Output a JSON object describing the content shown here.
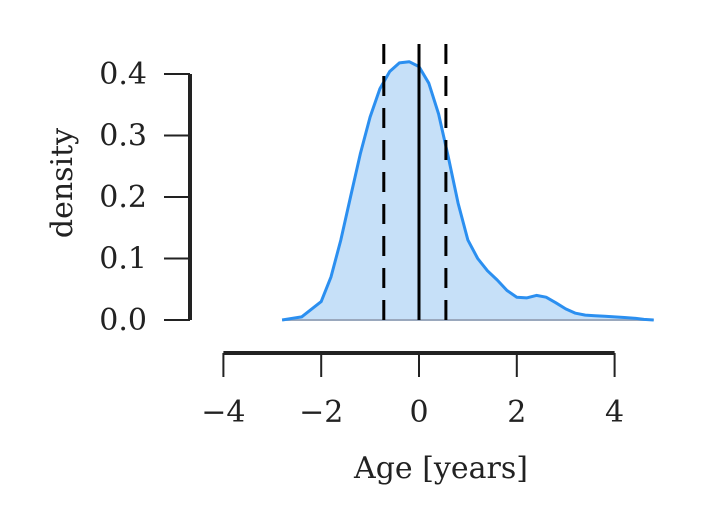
{
  "chart_data": {
    "type": "area",
    "title": "",
    "xlabel": "Age [years]",
    "ylabel": "density",
    "xlim": [
      -4,
      4.8
    ],
    "ylim": [
      0,
      0.4
    ],
    "x_ticks": [
      -4,
      -2,
      0,
      2,
      4
    ],
    "x_tick_labels": [
      "−4",
      "−2",
      "0",
      "2",
      "4"
    ],
    "y_ticks": [
      0.0,
      0.1,
      0.2,
      0.3,
      0.4
    ],
    "y_tick_labels": [
      "0.0",
      "0.1",
      "0.2",
      "0.3",
      "0.4"
    ],
    "grid": false,
    "series": [
      {
        "x": [
          -2.8,
          -2.4,
          -2.0,
          -1.8,
          -1.6,
          -1.4,
          -1.2,
          -1.0,
          -0.8,
          -0.6,
          -0.4,
          -0.2,
          0.0,
          0.2,
          0.4,
          0.6,
          0.8,
          1.0,
          1.2,
          1.4,
          1.6,
          1.8,
          2.0,
          2.2,
          2.4,
          2.6,
          2.8,
          3.0,
          3.2,
          3.4,
          3.6,
          3.8,
          4.0,
          4.2,
          4.4,
          4.6,
          4.8
        ],
        "y": [
          0.0,
          0.005,
          0.03,
          0.07,
          0.13,
          0.2,
          0.27,
          0.33,
          0.376,
          0.404,
          0.418,
          0.42,
          0.412,
          0.385,
          0.335,
          0.265,
          0.19,
          0.13,
          0.1,
          0.08,
          0.065,
          0.048,
          0.037,
          0.036,
          0.04,
          0.037,
          0.028,
          0.018,
          0.011,
          0.008,
          0.007,
          0.006,
          0.005,
          0.004,
          0.003,
          0.001,
          0.0
        ]
      }
    ],
    "vertical_lines": [
      {
        "x": -0.72,
        "style": "dashed"
      },
      {
        "x": 0.0,
        "style": "solid"
      },
      {
        "x": 0.55,
        "style": "dashed"
      }
    ],
    "colors": {
      "line": "#2b8ff0",
      "fill": "#c6e0f8",
      "baseline": "#9aa8bd",
      "axis": "#222222",
      "marker_lines": "#000000"
    }
  }
}
